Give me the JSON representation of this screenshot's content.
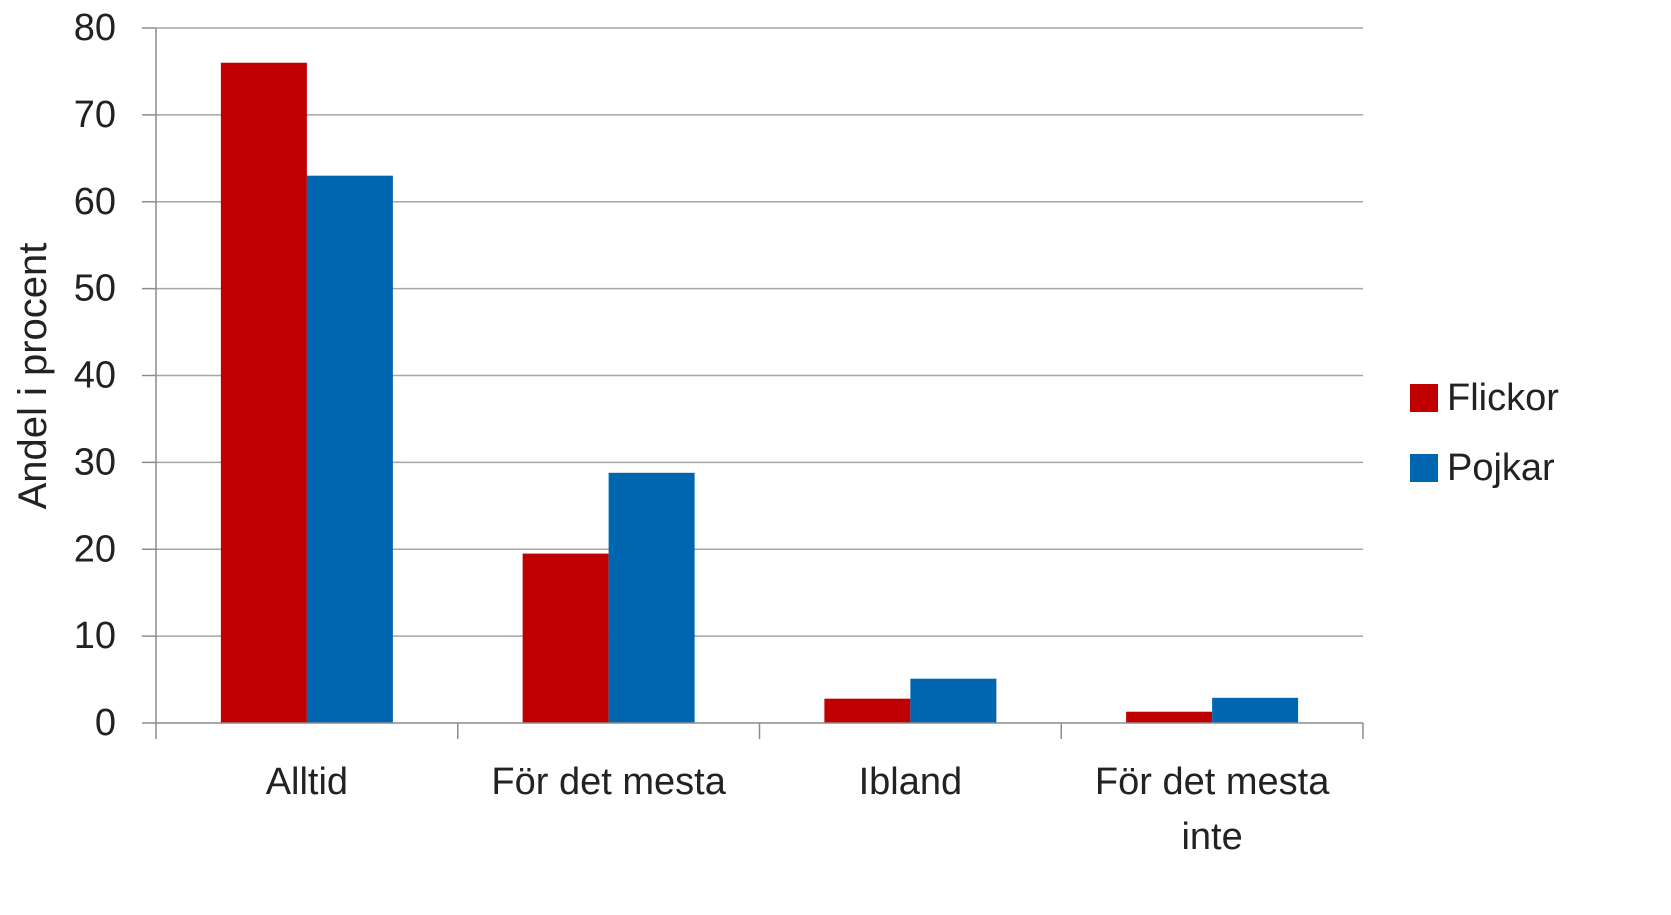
{
  "chart_data": {
    "type": "bar",
    "title": "",
    "xlabel": "",
    "ylabel": "Andel i procent",
    "categories": [
      [
        "Alltid"
      ],
      [
        "För det mesta"
      ],
      [
        "Ibland"
      ],
      [
        "För det mesta",
        "inte"
      ]
    ],
    "series": [
      {
        "name": "Flickor",
        "color": "#c00000",
        "values": [
          76,
          19.5,
          2.8,
          1.3
        ]
      },
      {
        "name": "Pojkar",
        "color": "#0066b0",
        "values": [
          63,
          28.8,
          5.1,
          2.9
        ]
      }
    ],
    "ylim": [
      0,
      80
    ],
    "yticks": [
      0,
      10,
      20,
      30,
      40,
      50,
      60,
      70,
      80
    ],
    "grid": true,
    "legend_position": "right"
  }
}
